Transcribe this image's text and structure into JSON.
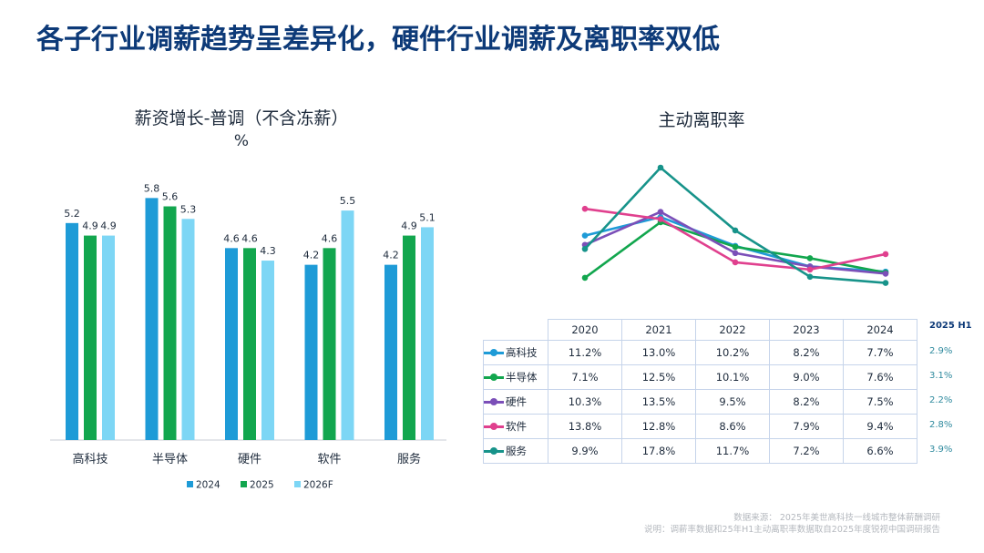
{
  "title": "各子行业调薪趋势呈差异化，硬件行业调薪及离职率双低",
  "chart_data": [
    {
      "type": "bar",
      "title": "薪资增长-普调（不含冻薪）",
      "unit": "%",
      "categories": [
        "高科技",
        "半导体",
        "硬件",
        "软件",
        "服务"
      ],
      "series": [
        {
          "name": "2024",
          "color": "#1e9bd7",
          "values": [
            5.2,
            5.8,
            4.6,
            4.2,
            4.2
          ]
        },
        {
          "name": "2025",
          "color": "#12a64e",
          "values": [
            4.9,
            5.6,
            4.6,
            4.6,
            4.9
          ]
        },
        {
          "name": "2026F",
          "color": "#7dd6f5",
          "values": [
            4.9,
            5.3,
            4.3,
            5.5,
            5.1
          ]
        }
      ],
      "ylim": [
        0,
        7
      ]
    },
    {
      "type": "line",
      "title": "主动离职率",
      "x": [
        "2020",
        "2021",
        "2022",
        "2023",
        "2024"
      ],
      "series": [
        {
          "name": "高科技",
          "color": "#1e9bd7",
          "values": [
            "11.2%",
            "13.0%",
            "10.2%",
            "8.2%",
            "7.7%"
          ],
          "h1": "2.9%"
        },
        {
          "name": "半导体",
          "color": "#12a64e",
          "values": [
            "7.1%",
            "12.5%",
            "10.1%",
            "9.0%",
            "7.6%"
          ],
          "h1": "3.1%"
        },
        {
          "name": "硬件",
          "color": "#7b4fb8",
          "values": [
            "10.3%",
            "13.5%",
            "9.5%",
            "8.2%",
            "7.5%"
          ],
          "h1": "2.2%"
        },
        {
          "name": "软件",
          "color": "#e0408e",
          "values": [
            "13.8%",
            "12.8%",
            "8.6%",
            "7.9%",
            "9.4%"
          ],
          "h1": "2.8%"
        },
        {
          "name": "服务",
          "color": "#17938a",
          "values": [
            "9.9%",
            "17.8%",
            "11.7%",
            "7.2%",
            "6.6%"
          ],
          "h1": "3.9%"
        }
      ],
      "ylim": [
        5,
        19
      ],
      "h1_label": "2025 H1"
    }
  ],
  "footnotes": {
    "source": "数据来源： 2025年美世高科技一线城市整体薪酬调研",
    "note": "说明：调薪率数据和25年H1主动离职率数据取自2025年度锐视中国调研报告"
  }
}
